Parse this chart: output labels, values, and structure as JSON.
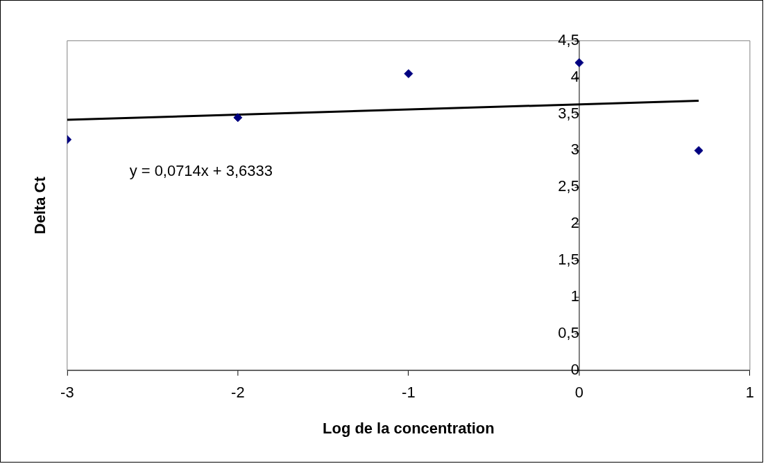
{
  "chart_data": {
    "type": "scatter",
    "xlabel": "Log de la concentration",
    "ylabel": "Delta Ct",
    "series": [
      {
        "color": "#000080",
        "marker": "diamond",
        "x": [
          -3,
          -2,
          -1,
          0,
          0.7
        ],
        "values": [
          3.15,
          3.45,
          4.05,
          4.2,
          3.0
        ]
      },
      {
        "type": "line",
        "color": "#000000",
        "marker": "none",
        "x": [
          -3,
          0.7
        ],
        "values": [
          3.42,
          3.68
        ]
      }
    ],
    "xlim": [
      -3,
      1
    ],
    "xticks": [
      -3,
      -2,
      -1,
      0,
      1
    ],
    "ylim": [
      0,
      4.5
    ],
    "yticks": [
      0,
      {
        "value": 0.5,
        "label": "0,5"
      },
      1,
      {
        "value": 1.5,
        "label": "1,5"
      },
      2,
      {
        "value": 2.5,
        "label": "2,5"
      },
      3,
      {
        "value": 3.5,
        "label": "3,5"
      },
      4,
      {
        "value": 4.5,
        "label": "4,5"
      }
    ],
    "annotations": [
      "y = 0,0714x + 3,6333"
    ],
    "grid": false,
    "legend": false
  }
}
